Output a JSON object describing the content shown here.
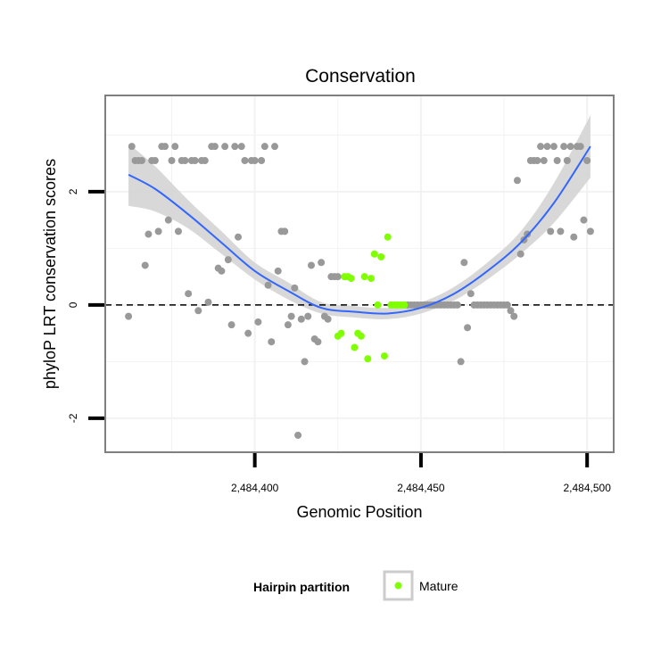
{
  "colors": {
    "panel_border": "#7f7f7f",
    "grid": "#f2f2f2",
    "point_other": "#999999",
    "point_mature": "#7fff00",
    "smooth_line": "#3366ff",
    "ribbon": "#d4d4d4"
  },
  "chart_data": {
    "type": "scatter",
    "title": "Conservation",
    "xlabel": "Genomic Position",
    "ylabel": "phyloP LRT conservation scores",
    "xlim": [
      2484355,
      2484508
    ],
    "ylim": [
      -2.6,
      3.7
    ],
    "x_ticks": [
      {
        "value": 2484400,
        "label": "2,484,400"
      },
      {
        "value": 2484450,
        "label": "2,484,450"
      },
      {
        "value": 2484500,
        "label": "2,484,500"
      }
    ],
    "y_ticks": [
      {
        "value": -2,
        "label": "-2"
      },
      {
        "value": 0,
        "label": "0"
      },
      {
        "value": 2,
        "label": "2"
      }
    ],
    "reference_line": {
      "y": 0,
      "style": "dashed"
    },
    "legend": {
      "title": "Hairpin partition",
      "entries": [
        {
          "label": "Mature",
          "color": "#7fff00"
        }
      ],
      "position": "bottom"
    },
    "series": [
      {
        "name": "Other",
        "color": "#999999",
        "points": [
          [
            2484362,
            -0.2
          ],
          [
            2484363,
            2.8
          ],
          [
            2484364,
            2.55
          ],
          [
            2484365,
            2.55
          ],
          [
            2484366,
            2.55
          ],
          [
            2484367,
            0.7
          ],
          [
            2484368,
            1.25
          ],
          [
            2484369,
            2.55
          ],
          [
            2484370,
            2.55
          ],
          [
            2484371,
            1.3
          ],
          [
            2484372,
            2.8
          ],
          [
            2484373,
            2.8
          ],
          [
            2484374,
            1.5
          ],
          [
            2484375,
            2.55
          ],
          [
            2484376,
            2.8
          ],
          [
            2484377,
            1.3
          ],
          [
            2484378,
            2.55
          ],
          [
            2484379,
            2.55
          ],
          [
            2484380,
            0.2
          ],
          [
            2484381,
            2.55
          ],
          [
            2484382,
            2.55
          ],
          [
            2484383,
            -0.1
          ],
          [
            2484384,
            2.55
          ],
          [
            2484385,
            2.55
          ],
          [
            2484386,
            0.05
          ],
          [
            2484387,
            2.8
          ],
          [
            2484388,
            2.8
          ],
          [
            2484389,
            0.65
          ],
          [
            2484390,
            0.6
          ],
          [
            2484391,
            2.8
          ],
          [
            2484392,
            0.8
          ],
          [
            2484393,
            -0.35
          ],
          [
            2484394,
            2.8
          ],
          [
            2484395,
            1.2
          ],
          [
            2484396,
            2.8
          ],
          [
            2484397,
            2.55
          ],
          [
            2484398,
            -0.5
          ],
          [
            2484399,
            2.55
          ],
          [
            2484400,
            2.55
          ],
          [
            2484401,
            -0.3
          ],
          [
            2484402,
            2.55
          ],
          [
            2484403,
            2.8
          ],
          [
            2484404,
            0.35
          ],
          [
            2484405,
            -0.65
          ],
          [
            2484406,
            2.8
          ],
          [
            2484407,
            0.6
          ],
          [
            2484408,
            1.3
          ],
          [
            2484409,
            1.3
          ],
          [
            2484410,
            -0.35
          ],
          [
            2484411,
            -0.2
          ],
          [
            2484412,
            0.3
          ],
          [
            2484413,
            -2.3
          ],
          [
            2484414,
            -0.25
          ],
          [
            2484415,
            -1.0
          ],
          [
            2484416,
            -0.2
          ],
          [
            2484417,
            0.7
          ],
          [
            2484418,
            -0.6
          ],
          [
            2484419,
            -0.65
          ],
          [
            2484420,
            0.75
          ],
          [
            2484421,
            -0.2
          ],
          [
            2484422,
            -0.25
          ],
          [
            2484423,
            0.5
          ],
          [
            2484424,
            0.5
          ],
          [
            2484425,
            0.5
          ],
          [
            2484446,
            0.0
          ],
          [
            2484447,
            0.0
          ],
          [
            2484448,
            0.0
          ],
          [
            2484449,
            0.0
          ],
          [
            2484450,
            0.0
          ],
          [
            2484451,
            0.0
          ],
          [
            2484452,
            0.0
          ],
          [
            2484453,
            0.0
          ],
          [
            2484454,
            0.0
          ],
          [
            2484455,
            0.0
          ],
          [
            2484456,
            0.0
          ],
          [
            2484457,
            0.0
          ],
          [
            2484458,
            0.0
          ],
          [
            2484459,
            0.0
          ],
          [
            2484460,
            0.0
          ],
          [
            2484461,
            0.0
          ],
          [
            2484462,
            -1.0
          ],
          [
            2484463,
            0.75
          ],
          [
            2484464,
            -0.4
          ],
          [
            2484465,
            0.2
          ],
          [
            2484466,
            0.0
          ],
          [
            2484467,
            0.0
          ],
          [
            2484468,
            0.0
          ],
          [
            2484469,
            0.0
          ],
          [
            2484470,
            0.0
          ],
          [
            2484471,
            0.0
          ],
          [
            2484472,
            0.0
          ],
          [
            2484473,
            0.0
          ],
          [
            2484474,
            0.0
          ],
          [
            2484475,
            0.0
          ],
          [
            2484476,
            0.0
          ],
          [
            2484477,
            -0.1
          ],
          [
            2484478,
            -0.2
          ],
          [
            2484479,
            2.2
          ],
          [
            2484480,
            0.9
          ],
          [
            2484481,
            1.15
          ],
          [
            2484482,
            1.25
          ],
          [
            2484483,
            2.55
          ],
          [
            2484484,
            2.55
          ],
          [
            2484485,
            2.55
          ],
          [
            2484486,
            2.8
          ],
          [
            2484487,
            2.55
          ],
          [
            2484488,
            2.8
          ],
          [
            2484489,
            1.3
          ],
          [
            2484490,
            2.8
          ],
          [
            2484491,
            2.55
          ],
          [
            2484492,
            1.3
          ],
          [
            2484493,
            2.8
          ],
          [
            2484494,
            2.55
          ],
          [
            2484495,
            2.8
          ],
          [
            2484496,
            1.2
          ],
          [
            2484497,
            2.8
          ],
          [
            2484498,
            2.8
          ],
          [
            2484499,
            1.5
          ],
          [
            2484500,
            2.55
          ],
          [
            2484501,
            1.3
          ]
        ]
      },
      {
        "name": "Mature",
        "color": "#7fff00",
        "points": [
          [
            2484425,
            -0.55
          ],
          [
            2484426,
            -0.5
          ],
          [
            2484427,
            0.5
          ],
          [
            2484428,
            0.5
          ],
          [
            2484429,
            0.47
          ],
          [
            2484430,
            -0.75
          ],
          [
            2484431,
            -0.5
          ],
          [
            2484432,
            -0.55
          ],
          [
            2484433,
            0.5
          ],
          [
            2484434,
            -0.95
          ],
          [
            2484435,
            0.47
          ],
          [
            2484436,
            0.9
          ],
          [
            2484437,
            0.0
          ],
          [
            2484438,
            0.85
          ],
          [
            2484439,
            -0.9
          ],
          [
            2484440,
            1.2
          ],
          [
            2484441,
            0.0
          ],
          [
            2484442,
            0.0
          ],
          [
            2484443,
            0.0
          ],
          [
            2484444,
            0.0
          ],
          [
            2484445,
            0.0
          ]
        ]
      }
    ],
    "smooth": {
      "method": "loess",
      "x": [
        2484362,
        2484370,
        2484380,
        2484390,
        2484400,
        2484410,
        2484420,
        2484430,
        2484440,
        2484450,
        2484460,
        2484470,
        2484480,
        2484490,
        2484501
      ],
      "y": [
        2.3,
        2.05,
        1.6,
        1.1,
        0.6,
        0.25,
        -0.05,
        -0.12,
        -0.15,
        -0.05,
        0.2,
        0.6,
        1.1,
        1.8,
        2.8
      ],
      "lower": [
        1.75,
        1.65,
        1.35,
        0.9,
        0.45,
        0.1,
        -0.15,
        -0.22,
        -0.25,
        -0.15,
        0.08,
        0.45,
        0.9,
        1.45,
        2.25
      ],
      "upper": [
        2.85,
        2.45,
        1.85,
        1.3,
        0.75,
        0.4,
        0.05,
        -0.02,
        -0.05,
        0.05,
        0.32,
        0.75,
        1.3,
        2.15,
        3.35
      ]
    }
  }
}
